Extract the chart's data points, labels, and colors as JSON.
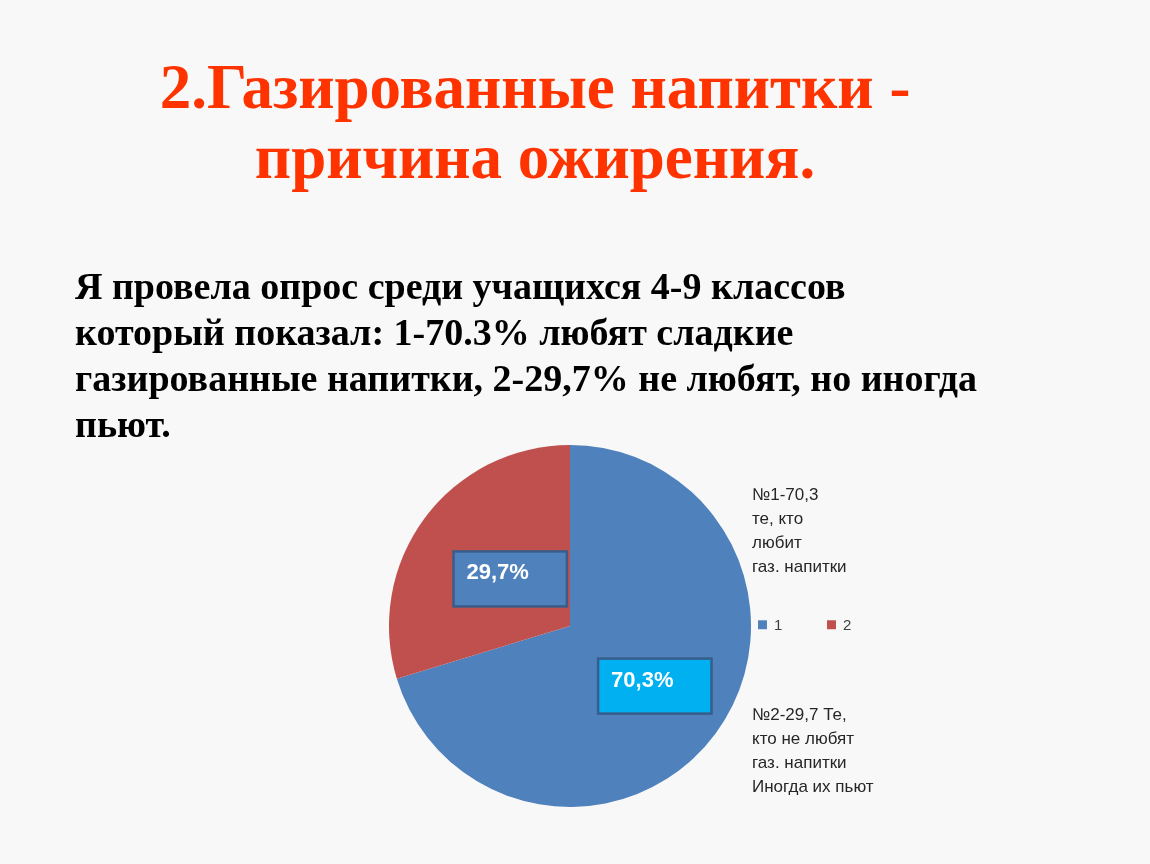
{
  "chart_data": {
    "type": "pie",
    "title": "2.Газированные напитки -\nпричина ожирения.",
    "subtitle": "Я провела опрос среди учащихся 4-9 классов\nкоторый показал: 1-70.3% любят сладкие\nгазированные напитки, 2-29,7% не любят, но иногда\nпьют.",
    "categories": [
      "1",
      "2"
    ],
    "values": [
      70.3,
      29.7
    ],
    "colors": [
      "#4f81bd",
      "#c0504d"
    ],
    "value_labels": [
      "70,3%",
      "29,7%"
    ],
    "legend": "right",
    "annotations": [
      "№1-70,3\nте, кто\nлюбит\nгаз. напитки",
      "№2-29,7 Те,\nкто не любят\nгаз. напитки\nИногда их пьют"
    ]
  }
}
